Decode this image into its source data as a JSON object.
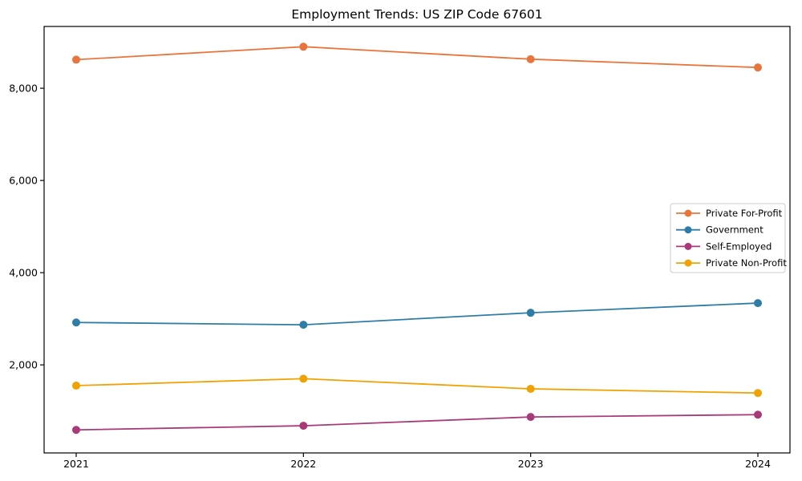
{
  "title": "Employment Trends: US ZIP Code 67601",
  "colors": {
    "axis": "#000000",
    "background": "#ffffff",
    "legend_border": "#cccccc",
    "private_for_profit": "#e8763c",
    "government": "#2e7da6",
    "self_employed": "#a83a7a",
    "private_non_profit": "#f0a202"
  },
  "chart_data": {
    "type": "line",
    "title": "Employment Trends: US ZIP Code 67601",
    "xlabel": "",
    "ylabel": "",
    "x": [
      2021,
      2022,
      2023,
      2024
    ],
    "x_tick_labels": [
      "2021",
      "2022",
      "2023",
      "2024"
    ],
    "y_ticks": [
      2000,
      4000,
      6000,
      8000
    ],
    "y_tick_labels": [
      "2,000",
      "4,000",
      "6,000",
      "8,000"
    ],
    "ylim": [
      90,
      9340
    ],
    "grid": false,
    "legend_position": "center right",
    "series": [
      {
        "name": "Private For-Profit",
        "color": "#e8763c",
        "values": [
          8620,
          8900,
          8630,
          8450
        ]
      },
      {
        "name": "Government",
        "color": "#2e7da6",
        "values": [
          2920,
          2870,
          3130,
          3340
        ]
      },
      {
        "name": "Self-Employed",
        "color": "#a83a7a",
        "values": [
          590,
          680,
          870,
          920
        ]
      },
      {
        "name": "Private Non-Profit",
        "color": "#f0a202",
        "values": [
          1550,
          1700,
          1480,
          1390
        ]
      }
    ]
  }
}
